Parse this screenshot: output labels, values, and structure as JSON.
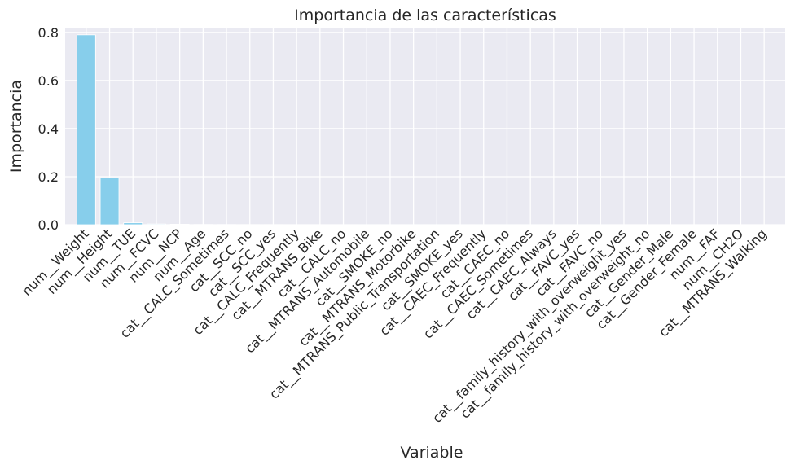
{
  "chart_data": {
    "type": "bar",
    "title": "Importancia de las características",
    "xlabel": "Variable",
    "ylabel": "Importancia",
    "ylim": [
      0,
      0.82
    ],
    "yticks": [
      0.0,
      0.2,
      0.4,
      0.6,
      0.8
    ],
    "ytick_labels": [
      "0.0",
      "0.2",
      "0.4",
      "0.6",
      "0.8"
    ],
    "grid": true,
    "bar_color": "#87ceeb",
    "background_color": "#eaeaf2",
    "categories": [
      "num__Weight",
      "num__Height",
      "num__TUE",
      "num__FCVC",
      "num__NCP",
      "num__Age",
      "cat__CALC_Sometimes",
      "cat__SCC_no",
      "cat__SCC_yes",
      "cat__CALC_Frequently",
      "cat__MTRANS_Bike",
      "cat__CALC_no",
      "cat__MTRANS_Automobile",
      "cat__SMOKE_no",
      "cat__MTRANS_Motorbike",
      "cat__MTRANS_Public_Transportation",
      "cat__SMOKE_yes",
      "cat__CAEC_Frequently",
      "cat__CAEC_no",
      "cat__CAEC_Sometimes",
      "cat__CAEC_Always",
      "cat__FAVC_yes",
      "cat__FAVC_no",
      "cat__family_history_with_overweight_yes",
      "cat__family_history_with_overweight_no",
      "cat__Gender_Male",
      "cat__Gender_Female",
      "num__FAF",
      "num__CH2O",
      "cat__MTRANS_Walking"
    ],
    "values": [
      0.79,
      0.195,
      0.008,
      0.003,
      0.002,
      0.001,
      0.0008,
      0.0006,
      0.0005,
      0.0004,
      0.0003,
      0.0003,
      0.0002,
      0.0002,
      0.0002,
      0.0001,
      0.0001,
      0.0001,
      0.0001,
      0.0001,
      0.0001,
      0.0001,
      0.0001,
      0.0,
      0.0,
      0.0,
      0.0,
      0.0,
      0.0,
      0.0
    ]
  }
}
